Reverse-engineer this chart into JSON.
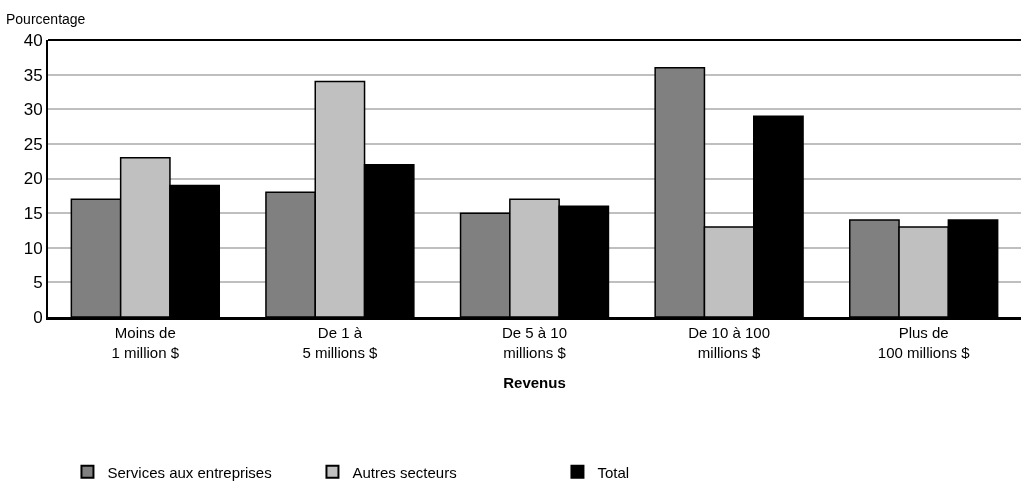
{
  "chart_data": {
    "type": "bar",
    "ylabel": "Pourcentage",
    "xlabel": "Revenus",
    "categories": [
      "Moins de\n1 million $",
      "De 1 à\n5 millions $",
      "De 5 à 10\nmillions $",
      "De 10 à 100\nmillions $",
      "Plus de\n100 millions $"
    ],
    "series": [
      {
        "name": "Services aux entreprises",
        "color": "#808080",
        "values": [
          17,
          18,
          15,
          36,
          14
        ]
      },
      {
        "name": "Autres secteurs",
        "color": "#c0c0c0",
        "values": [
          23,
          34,
          17,
          13,
          13
        ]
      },
      {
        "name": "Total",
        "color": "#000000",
        "values": [
          19,
          22,
          16,
          29,
          14
        ]
      }
    ],
    "ylim": [
      0,
      40
    ],
    "yticks": [
      0,
      5,
      10,
      15,
      20,
      25,
      30,
      35,
      40
    ],
    "grid": "y",
    "legend": "bottom"
  }
}
